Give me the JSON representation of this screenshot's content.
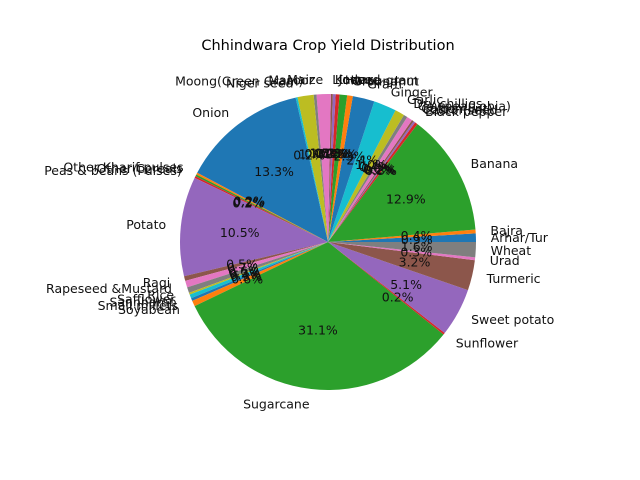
{
  "chart_data": {
    "type": "pie",
    "title": "Chhindwara Crop Yield Distribution",
    "start_angle_deg": 0,
    "direction": "counterclockwise",
    "palette": [
      "#1f77b4",
      "#ff7f0e",
      "#2ca02c",
      "#d62728",
      "#9467bd",
      "#8c564b",
      "#e377c2",
      "#7f7f7f",
      "#bcbd22",
      "#17becf"
    ],
    "slices": [
      {
        "label": "Arhar/Tur",
        "value": 0.9,
        "pct_label": "0.9%"
      },
      {
        "label": "Bajra",
        "value": 0.4,
        "pct_label": "0.4%"
      },
      {
        "label": "Banana",
        "value": 12.9,
        "pct_label": "12.9%"
      },
      {
        "label": "Black pepper",
        "value": 0.3,
        "pct_label": "0.3%"
      },
      {
        "label": "Castor seed",
        "value": 0.2,
        "pct_label": "0.2%"
      },
      {
        "label": "Cotton(lint)",
        "value": 0.2,
        "pct_label": "0.2%"
      },
      {
        "label": "Cowpea(Lobia)",
        "value": 0.6,
        "pct_label": "0.6%"
      },
      {
        "label": "Dry chillies",
        "value": 0.4,
        "pct_label": "0.4%"
      },
      {
        "label": "Garlic",
        "value": 1.0,
        "pct_label": "1.0%"
      },
      {
        "label": "Ginger",
        "value": 2.4,
        "pct_label": "2.4%"
      },
      {
        "label": "Gram",
        "value": 2.3,
        "pct_label": "2.3%"
      },
      {
        "label": "Groundnut",
        "value": 0.6,
        "pct_label": "0.6%"
      },
      {
        "label": "Horse-gram",
        "value": 0.8,
        "pct_label": "0.8%"
      },
      {
        "label": "Jowar",
        "value": 0.4,
        "pct_label": "0.4%"
      },
      {
        "label": "Kodo",
        "value": 0.3,
        "pct_label": "0.3%"
      },
      {
        "label": "Linseed",
        "value": 0.2,
        "pct_label": "0.2%"
      },
      {
        "label": "Maize",
        "value": 1.5,
        "pct_label": "1.5%"
      },
      {
        "label": "Masoor",
        "value": 0.3,
        "pct_label": "0.3%"
      },
      {
        "label": "Moong(Green Gram)",
        "value": 1.7,
        "pct_label": "1.7%"
      },
      {
        "label": "Niger seed",
        "value": 0.2,
        "pct_label": "0.2%"
      },
      {
        "label": "Onion",
        "value": 13.3,
        "pct_label": "13.3%"
      },
      {
        "label": "Other Kharif pulses",
        "value": 0.2,
        "pct_label": "0.2%"
      },
      {
        "label": "Other Cereals",
        "value": 0.2,
        "pct_label": "0.2%"
      },
      {
        "label": "Peas & beans (Pulses)",
        "value": 0.2,
        "pct_label": "0.2%"
      },
      {
        "label": "Potato",
        "value": 10.5,
        "pct_label": "10.5%"
      },
      {
        "label": "Ragi",
        "value": 0.5,
        "pct_label": "0.5%"
      },
      {
        "label": "Rapeseed &Mustard",
        "value": 0.7,
        "pct_label": "0.7%"
      },
      {
        "label": "Rice",
        "value": 0.6,
        "pct_label": "0.6%"
      },
      {
        "label": "Safflower",
        "value": 0.2,
        "pct_label": "0.2%"
      },
      {
        "label": "Sannhamp",
        "value": 0.4,
        "pct_label": "0.4%"
      },
      {
        "label": "Small millets",
        "value": 0.3,
        "pct_label": "0.3%"
      },
      {
        "label": "Soyabean",
        "value": 0.6,
        "pct_label": "0.6%"
      },
      {
        "label": "Sugarcane",
        "value": 31.1,
        "pct_label": "31.1%"
      },
      {
        "label": "Sunflower",
        "value": 0.2,
        "pct_label": "0.2%"
      },
      {
        "label": "Sweet potato",
        "value": 5.1,
        "pct_label": "5.1%"
      },
      {
        "label": "Turmeric",
        "value": 3.2,
        "pct_label": "3.2%"
      },
      {
        "label": "Urad",
        "value": 0.3,
        "pct_label": "0.3%"
      },
      {
        "label": "Wheat",
        "value": 1.6,
        "pct_label": "1.6%"
      }
    ]
  }
}
